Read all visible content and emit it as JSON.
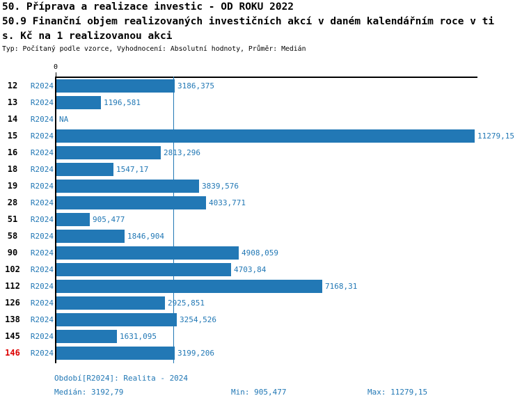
{
  "header": {
    "title_line1": "50. Příprava a realizace investic - OD ROKU 2022",
    "title_line2": "50.9 Finanční objem realizovaných investičních akcí v daném kalendářním roce v ti",
    "title_line3": "s. Kč na 1 realizovanou akci",
    "subtitle": "Typ: Počítaný podle vzorce, Vyhodnocení: Absolutní hodnoty, Průměr: Medián"
  },
  "colors": {
    "accent_blue": "#2278b5",
    "highlight_red": "#dd0000",
    "axis_black": "#000000",
    "background": "#ffffff"
  },
  "chart_data": {
    "type": "bar",
    "orientation": "horizontal",
    "title": "50.9 Finanční objem realizovaných investičních akcí v daném kalendářním roce v tis. Kč na 1 realizovanou akci",
    "x_axis_tick_labels": [
      "0"
    ],
    "xlim": [
      0,
      11400
    ],
    "grid": false,
    "legend": "none",
    "median_value": 3192.79,
    "axis_max": 11279.15,
    "series_period": "R2024",
    "rows": [
      {
        "id": "12",
        "period": "R2024",
        "value": 3186.375,
        "value_label": "3186,375",
        "highlight": false
      },
      {
        "id": "13",
        "period": "R2024",
        "value": 1196.581,
        "value_label": "1196,581",
        "highlight": false
      },
      {
        "id": "14",
        "period": "R2024",
        "value": null,
        "value_label": "NA",
        "highlight": false
      },
      {
        "id": "15",
        "period": "R2024",
        "value": 11279.15,
        "value_label": "11279,15",
        "highlight": false
      },
      {
        "id": "16",
        "period": "R2024",
        "value": 2813.296,
        "value_label": "2813,296",
        "highlight": false
      },
      {
        "id": "18",
        "period": "R2024",
        "value": 1547.17,
        "value_label": "1547,17",
        "highlight": false
      },
      {
        "id": "19",
        "period": "R2024",
        "value": 3839.576,
        "value_label": "3839,576",
        "highlight": false
      },
      {
        "id": "28",
        "period": "R2024",
        "value": 4033.771,
        "value_label": "4033,771",
        "highlight": false
      },
      {
        "id": "51",
        "period": "R2024",
        "value": 905.477,
        "value_label": "905,477",
        "highlight": false
      },
      {
        "id": "58",
        "period": "R2024",
        "value": 1846.904,
        "value_label": "1846,904",
        "highlight": false
      },
      {
        "id": "90",
        "period": "R2024",
        "value": 4908.059,
        "value_label": "4908,059",
        "highlight": false
      },
      {
        "id": "102",
        "period": "R2024",
        "value": 4703.84,
        "value_label": "4703,84",
        "highlight": false
      },
      {
        "id": "112",
        "period": "R2024",
        "value": 7168.31,
        "value_label": "7168,31",
        "highlight": false
      },
      {
        "id": "126",
        "period": "R2024",
        "value": 2925.851,
        "value_label": "2925,851",
        "highlight": false
      },
      {
        "id": "138",
        "period": "R2024",
        "value": 3254.526,
        "value_label": "3254,526",
        "highlight": false
      },
      {
        "id": "145",
        "period": "R2024",
        "value": 1631.095,
        "value_label": "1631,095",
        "highlight": false
      },
      {
        "id": "146",
        "period": "R2024",
        "value": 3199.206,
        "value_label": "3199,206",
        "highlight": true
      }
    ]
  },
  "footer": {
    "period_line": "Období[R2024]: Realita - 2024",
    "median_label": "Medián: 3192,79",
    "min_label": "Min: 905,477",
    "max_label": "Max: 11279,15"
  }
}
